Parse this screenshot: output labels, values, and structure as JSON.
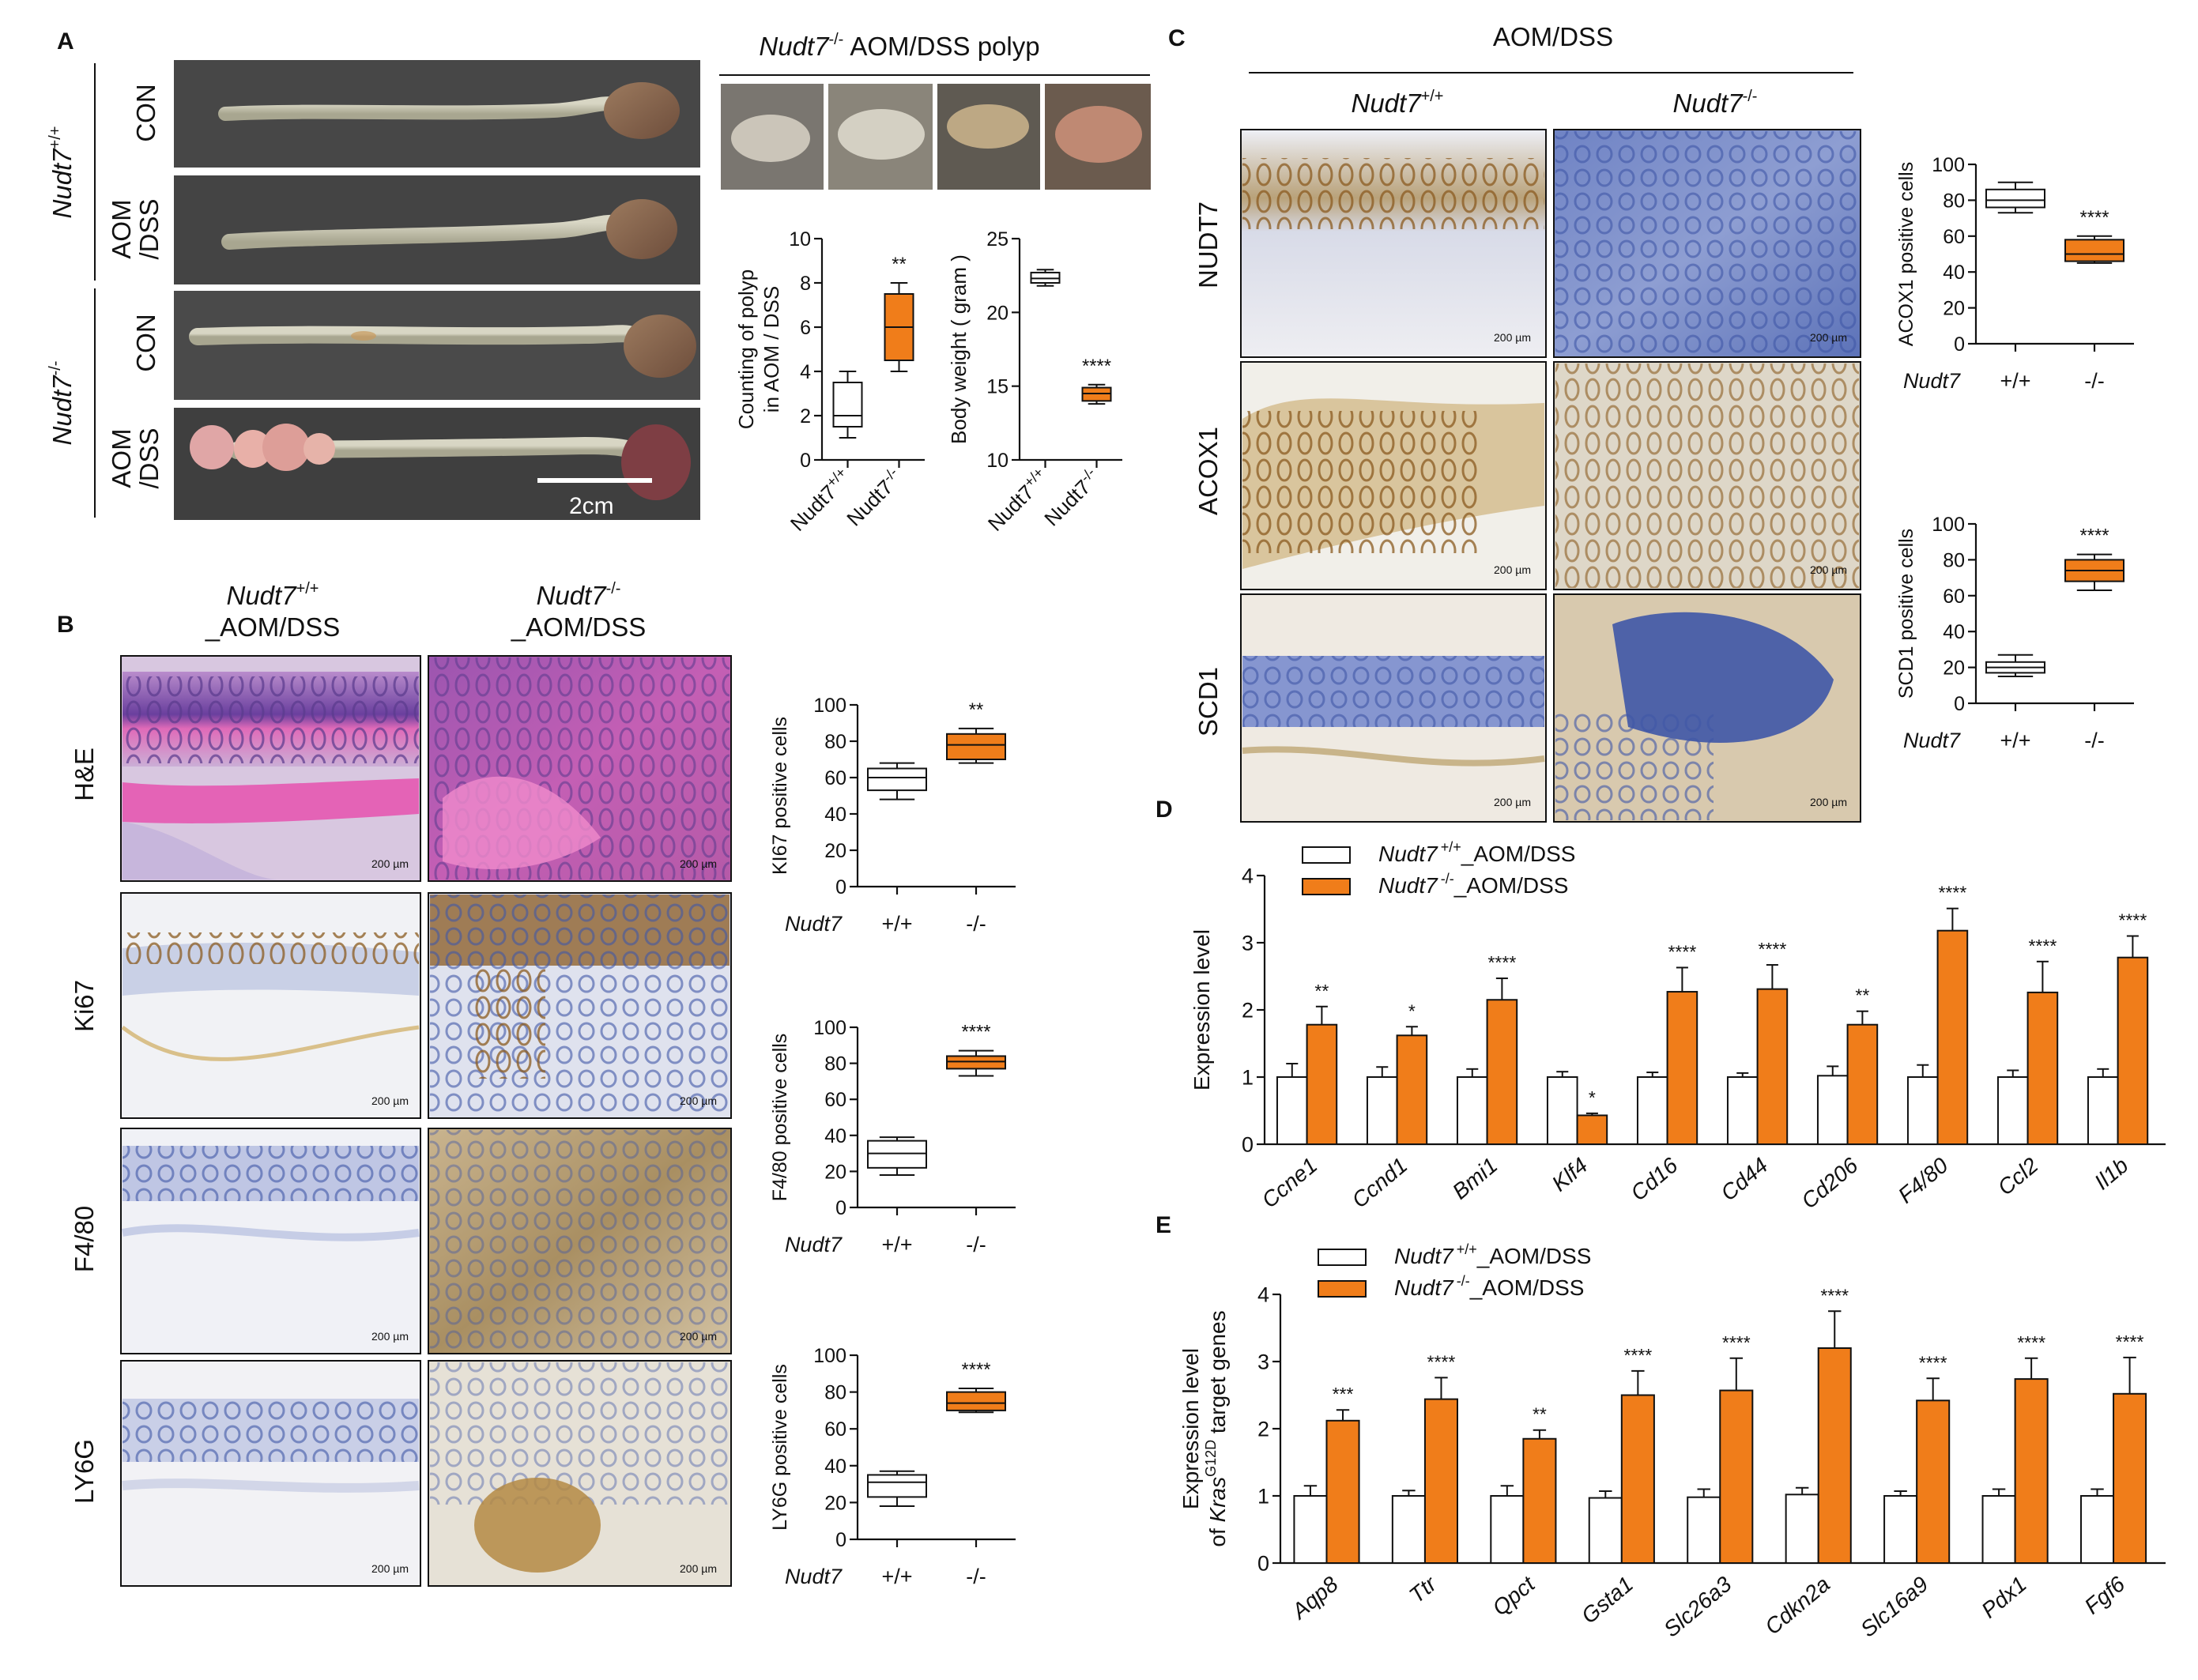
{
  "labels": {
    "panel_a": "A",
    "panel_b": "B",
    "panel_c": "C",
    "panel_d": "D",
    "panel_e": "E",
    "nudt7": "Nudt7",
    "wt_sup": "+/+",
    "ko_sup": "-/-",
    "aom_dss": "AOM/DSS",
    "aom_dss_suffix": "_AOM/DSS",
    "con": "CON",
    "aom": "AOM",
    "dss": "/DSS",
    "polyp_title_suffix": "AOM/DSS polyp",
    "scale_2cm": "2cm",
    "scale_um": "200 µm",
    "stain_he": "H&E",
    "stain_ki67": "Ki67",
    "stain_f480": "F4/80",
    "stain_ly6g": "LY6G",
    "stain_nudt7": "NUDT7",
    "stain_acox1": "ACOX1",
    "stain_scd1": "SCD1",
    "group_wt": "+/+",
    "group_ko": "-/-",
    "group_prefix": "Nudt7"
  },
  "colors": {
    "ko_orange": "#f07d1a",
    "wt_white": "#ffffff",
    "he_pink": "#d66fb4",
    "he_purple": "#6c3fa0",
    "ihc_blue": "#8a9ad0",
    "ihc_brown": "#9a6a2a",
    "photo_bg": "#404040"
  },
  "chart_data": [
    {
      "id": "polyp_count",
      "type": "box",
      "ylabel_line1": "Counting of polyp",
      "ylabel_line2": "in AOM / DSS",
      "ylim": [
        0,
        10
      ],
      "yticks": [
        0,
        2,
        4,
        6,
        8,
        10
      ],
      "categories": [
        "Nudt7 +/+",
        "Nudt7 -/-"
      ],
      "boxes": [
        {
          "group": "+/+",
          "min": 1,
          "q1": 1.5,
          "median": 2,
          "q3": 3.5,
          "max": 4
        },
        {
          "group": "-/-",
          "min": 4,
          "q1": 4.5,
          "median": 6,
          "q3": 7.5,
          "max": 8
        }
      ],
      "significance": "**"
    },
    {
      "id": "body_weight",
      "type": "box",
      "ylabel": "Body weight ( gram )",
      "ylim": [
        10,
        25
      ],
      "yticks": [
        10,
        15,
        20,
        25
      ],
      "categories": [
        "Nudt7 +/+",
        "Nudt7 -/-"
      ],
      "boxes": [
        {
          "group": "+/+",
          "min": 21.8,
          "q1": 22.0,
          "median": 22.3,
          "q3": 22.7,
          "max": 22.9
        },
        {
          "group": "-/-",
          "min": 13.8,
          "q1": 14.0,
          "median": 14.5,
          "q3": 14.9,
          "max": 15.1
        }
      ],
      "significance": "****"
    },
    {
      "id": "ki67",
      "type": "box",
      "ylabel": "KI67 positive cells",
      "ylim": [
        0,
        100
      ],
      "yticks": [
        0,
        20,
        40,
        60,
        80,
        100
      ],
      "boxes": [
        {
          "group": "+/+",
          "min": 48,
          "q1": 53,
          "median": 60,
          "q3": 65,
          "max": 68
        },
        {
          "group": "-/-",
          "min": 68,
          "q1": 70,
          "median": 78,
          "q3": 84,
          "max": 87
        }
      ],
      "significance": "**"
    },
    {
      "id": "f480",
      "type": "box",
      "ylabel": "F4/80 positive cells",
      "ylim": [
        0,
        100
      ],
      "yticks": [
        0,
        20,
        40,
        60,
        80,
        100
      ],
      "boxes": [
        {
          "group": "+/+",
          "min": 18,
          "q1": 22,
          "median": 30,
          "q3": 37,
          "max": 39
        },
        {
          "group": "-/-",
          "min": 73,
          "q1": 77,
          "median": 81,
          "q3": 84,
          "max": 87
        }
      ],
      "significance": "****"
    },
    {
      "id": "ly6g",
      "type": "box",
      "ylabel": "LY6G positive cells",
      "ylim": [
        0,
        100
      ],
      "yticks": [
        0,
        20,
        40,
        60,
        80,
        100
      ],
      "boxes": [
        {
          "group": "+/+",
          "min": 18,
          "q1": 23,
          "median": 31,
          "q3": 35,
          "max": 37
        },
        {
          "group": "-/-",
          "min": 69,
          "q1": 70,
          "median": 74,
          "q3": 80,
          "max": 82
        }
      ],
      "significance": "****"
    },
    {
      "id": "acox1",
      "type": "box",
      "ylabel": "ACOX1 positive cells",
      "ylim": [
        0,
        100
      ],
      "yticks": [
        0,
        20,
        40,
        60,
        80,
        100
      ],
      "boxes": [
        {
          "group": "+/+",
          "min": 73,
          "q1": 76,
          "median": 80,
          "q3": 86,
          "max": 90
        },
        {
          "group": "-/-",
          "min": 45,
          "q1": 46,
          "median": 50,
          "q3": 58,
          "max": 60
        }
      ],
      "significance": "****"
    },
    {
      "id": "scd1",
      "type": "box",
      "ylabel": "SCD1 positive cells",
      "ylim": [
        0,
        100
      ],
      "yticks": [
        0,
        20,
        40,
        60,
        80,
        100
      ],
      "boxes": [
        {
          "group": "+/+",
          "min": 15,
          "q1": 17,
          "median": 20,
          "q3": 23,
          "max": 27
        },
        {
          "group": "-/-",
          "min": 63,
          "q1": 68,
          "median": 74,
          "q3": 80,
          "max": 83
        }
      ],
      "significance": "****"
    },
    {
      "id": "expr_d",
      "type": "bar",
      "ylabel": "Expression level",
      "ylim": [
        0,
        4
      ],
      "yticks": [
        0,
        1,
        2,
        3,
        4
      ],
      "legend": [
        "Nudt7 +/+_AOM/DSS",
        "Nudt7 -/-_AOM/DSS"
      ],
      "categories": [
        "Ccne1",
        "Ccnd1",
        "Bmi1",
        "Klf4",
        "Cd16",
        "Cd44",
        "Cd206",
        "F4/80",
        "Ccl2",
        "Il1b"
      ],
      "series": [
        {
          "name": "Nudt7 +/+_AOM/DSS",
          "values": [
            1.0,
            1.0,
            1.0,
            1.0,
            1.0,
            1.0,
            1.02,
            1.0,
            1.0,
            1.0
          ],
          "errors": [
            0.2,
            0.15,
            0.12,
            0.08,
            0.07,
            0.06,
            0.14,
            0.18,
            0.1,
            0.12
          ]
        },
        {
          "name": "Nudt7 -/-_AOM/DSS",
          "values": [
            1.78,
            1.62,
            2.15,
            0.43,
            2.27,
            2.31,
            1.78,
            3.18,
            2.26,
            2.78
          ],
          "errors": [
            0.27,
            0.13,
            0.32,
            0.03,
            0.36,
            0.36,
            0.2,
            0.33,
            0.46,
            0.32
          ]
        }
      ],
      "significance": [
        "**",
        "*",
        "****",
        "*",
        "****",
        "****",
        "**",
        "****",
        "****",
        "****"
      ]
    },
    {
      "id": "expr_e",
      "type": "bar",
      "ylabel_line1": "Expression level",
      "ylabel_line2_prefix": "of ",
      "ylabel_gene": "Kras",
      "ylabel_sup": "G12D",
      "ylabel_suffix": " target genes",
      "ylim": [
        0,
        4
      ],
      "yticks": [
        0,
        1,
        2,
        3,
        4
      ],
      "legend": [
        "Nudt7 +/+_AOM/DSS",
        "Nudt7 -/-_AOM/DSS"
      ],
      "categories": [
        "Aqp8",
        "Ttr",
        "Qpct",
        "Gsta1",
        "Slc26a3",
        "Cdkn2a",
        "Slc16a9",
        "Pdx1",
        "Fgf6"
      ],
      "series": [
        {
          "name": "Nudt7 +/+_AOM/DSS",
          "values": [
            1.0,
            1.0,
            1.0,
            0.97,
            0.98,
            1.02,
            1.0,
            1.0,
            1.0
          ],
          "errors": [
            0.15,
            0.08,
            0.15,
            0.1,
            0.12,
            0.1,
            0.07,
            0.1,
            0.1
          ]
        },
        {
          "name": "Nudt7 -/-_AOM/DSS",
          "values": [
            2.12,
            2.44,
            1.85,
            2.5,
            2.57,
            3.2,
            2.42,
            2.74,
            2.52
          ],
          "errors": [
            0.16,
            0.32,
            0.13,
            0.36,
            0.48,
            0.55,
            0.33,
            0.31,
            0.54
          ]
        }
      ],
      "significance": [
        "***",
        "****",
        "**",
        "****",
        "****",
        "****",
        "****",
        "****",
        "****"
      ]
    }
  ]
}
